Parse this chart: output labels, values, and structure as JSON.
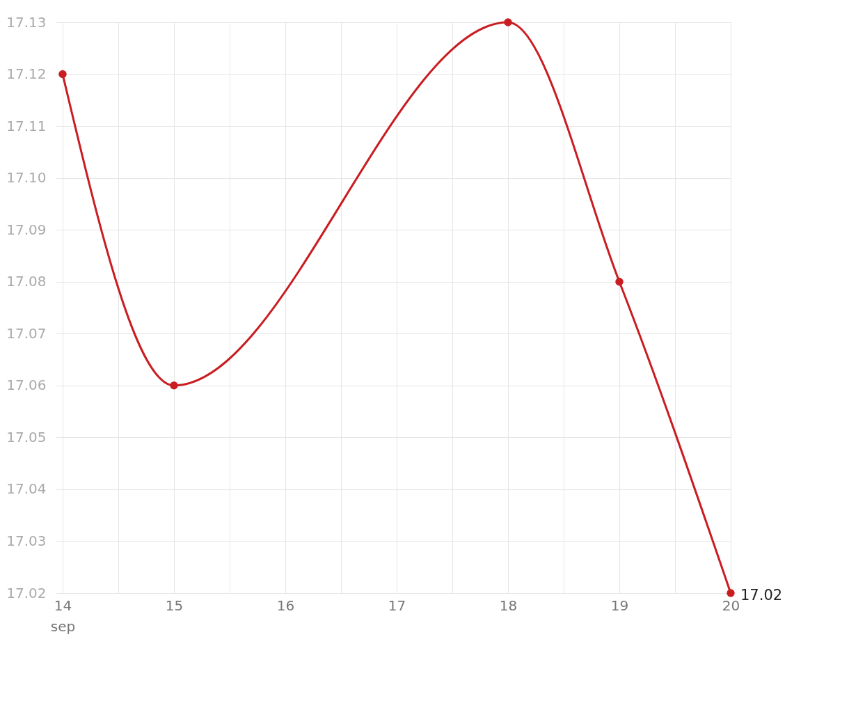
{
  "chart_data": {
    "type": "line",
    "x": [
      "--09-14",
      "--09-15",
      "--09-18",
      "--09-19",
      "--09-20"
    ],
    "series": [
      {
        "color": "#c91d21",
        "values": [
          17.12,
          17.06,
          17.13,
          17.08,
          17.02
        ],
        "value_labels": [
          null,
          null,
          null,
          null,
          "17.02"
        ]
      }
    ],
    "xlim": [
      "--09-14",
      "--09-20"
    ],
    "xticks": [
      {
        "value": "--09-14",
        "label": "14\nsep"
      },
      {
        "value": "--09-14T12:00",
        "label": null
      },
      {
        "value": "--09-15",
        "label": "15"
      },
      {
        "value": "--09-15T12:00",
        "label": null
      },
      {
        "value": "--09-16",
        "label": "16"
      },
      {
        "value": "--09-16T12:00",
        "label": null
      },
      {
        "value": "--09-17",
        "label": "17"
      },
      {
        "value": "--09-17T12:00",
        "label": null
      },
      {
        "value": "--09-18",
        "label": "18"
      },
      {
        "value": "--09-18T12:00",
        "label": null
      },
      {
        "value": "--09-19",
        "label": "19"
      },
      {
        "value": "--09-19T12:00",
        "label": null
      },
      {
        "value": "--09-20",
        "label": "20"
      }
    ],
    "ylim": [
      17.02,
      17.13
    ],
    "yticks": [
      17.02,
      17.03,
      17.04,
      17.05,
      17.06,
      17.07,
      17.08,
      17.09,
      {
        "value": 17.1,
        "label": "17.10"
      },
      17.11,
      17.12,
      17.13
    ],
    "grid": true,
    "marker": "circle",
    "line_style": "solid"
  }
}
